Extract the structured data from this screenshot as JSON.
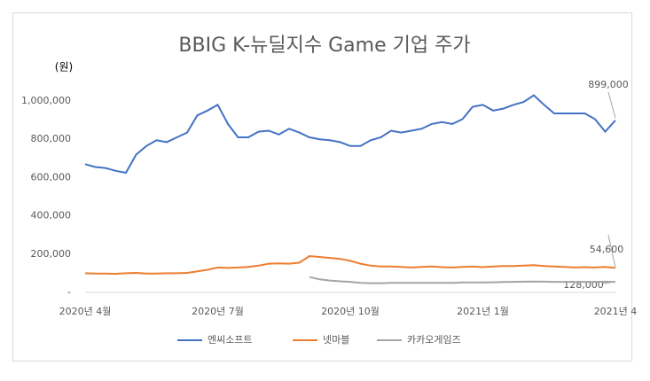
{
  "chart_data": {
    "type": "line",
    "title": "BBIG K-뉴딜지수 Game 기업 주가",
    "y_label": "(원)",
    "categories": [
      "2020년 4월",
      null,
      null,
      null,
      null,
      null,
      null,
      null,
      null,
      null,
      null,
      null,
      null,
      "2020년 7월",
      null,
      null,
      null,
      null,
      null,
      null,
      null,
      null,
      null,
      null,
      null,
      null,
      "2020년 10월",
      null,
      null,
      null,
      null,
      null,
      null,
      null,
      null,
      null,
      null,
      null,
      null,
      "2021년 1월",
      null,
      null,
      null,
      null,
      null,
      null,
      null,
      null,
      null,
      null,
      null,
      null,
      "2021년 4"
    ],
    "series": [
      {
        "name": "엔씨소프트",
        "color": "#4472c4",
        "values": [
          670000,
          655000,
          650000,
          635000,
          625000,
          720000,
          765000,
          795000,
          785000,
          810000,
          835000,
          925000,
          950000,
          980000,
          880000,
          810000,
          810000,
          840000,
          845000,
          825000,
          855000,
          835000,
          810000,
          800000,
          795000,
          785000,
          765000,
          765000,
          795000,
          810000,
          845000,
          835000,
          845000,
          855000,
          880000,
          890000,
          880000,
          905000,
          970000,
          980000,
          950000,
          960000,
          980000,
          995000,
          1030000,
          980000,
          935000,
          935000,
          935000,
          935000,
          905000,
          840000,
          899000
        ]
      },
      {
        "name": "넷마블",
        "color": "#ed7d31",
        "values": [
          100000,
          98000,
          98000,
          97000,
          100000,
          102000,
          98000,
          98000,
          100000,
          100000,
          102000,
          110000,
          118000,
          130000,
          128000,
          130000,
          133000,
          140000,
          150000,
          152000,
          150000,
          155000,
          190000,
          185000,
          180000,
          175000,
          165000,
          150000,
          140000,
          135000,
          135000,
          133000,
          130000,
          133000,
          135000,
          132000,
          130000,
          133000,
          135000,
          132000,
          135000,
          138000,
          138000,
          140000,
          142000,
          138000,
          135000,
          133000,
          130000,
          132000,
          130000,
          133000,
          128000
        ]
      },
      {
        "name": "카카오게임즈",
        "color": "#a5a5a5",
        "values": [
          null,
          null,
          null,
          null,
          null,
          null,
          null,
          null,
          null,
          null,
          null,
          null,
          null,
          null,
          null,
          null,
          null,
          null,
          null,
          null,
          null,
          null,
          80000,
          68000,
          62000,
          58000,
          55000,
          50000,
          48000,
          48000,
          50000,
          50000,
          50000,
          50000,
          50000,
          50000,
          50000,
          52000,
          52000,
          52000,
          53000,
          54000,
          55000,
          56000,
          57000,
          56000,
          55000,
          55000,
          54000,
          55000,
          55000,
          56000,
          54600
        ]
      }
    ],
    "ylim": [
      0,
      1100000
    ],
    "yticks": [
      {
        "value": 0,
        "label": "-"
      },
      {
        "value": 200000,
        "label": "200,000"
      },
      {
        "value": 400000,
        "label": "400,000"
      },
      {
        "value": 600000,
        "label": "600,000"
      },
      {
        "value": 800000,
        "label": "800,000"
      },
      {
        "value": 1000000,
        "label": "1,000,000"
      }
    ],
    "annotations": [
      "899,000",
      "54,600",
      "128,000"
    ],
    "legend": "bottom"
  }
}
